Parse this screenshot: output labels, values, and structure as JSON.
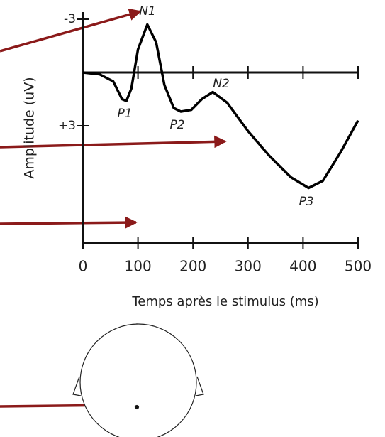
{
  "chart_data": {
    "type": "line",
    "y_label": "Amplitude (uV)",
    "x_label": "Temps après le stimulus (ms)",
    "x": [
      0,
      30,
      55,
      71,
      79,
      88,
      100,
      117,
      133,
      148,
      165,
      178,
      197,
      216,
      236,
      262,
      300,
      339,
      378,
      410,
      436,
      468,
      500
    ],
    "series": [
      {
        "color": "#000000",
        "values": [
          0,
          0.1,
          0.5,
          1.5,
          1.6,
          0.9,
          -1.3,
          -2.7,
          -1.7,
          0.7,
          2.0,
          2.2,
          2.1,
          1.5,
          1.1,
          1.7,
          3.3,
          4.7,
          5.9,
          6.5,
          6.1,
          4.5,
          2.7
        ]
      }
    ],
    "xlim": [
      0,
      500
    ],
    "xticks": [
      0,
      100,
      200,
      300,
      400,
      500
    ],
    "ylim": [
      -3.4,
      9.6
    ],
    "y_inverted": true,
    "yticks": [
      -3,
      {
        "value": 3,
        "label": "+3"
      }
    ],
    "grid": false,
    "annotations": [
      {
        "text": "N1"
      },
      {
        "text": "P1"
      },
      {
        "text": "P2"
      },
      {
        "text": "N2"
      },
      {
        "text": "P3"
      }
    ]
  }
}
